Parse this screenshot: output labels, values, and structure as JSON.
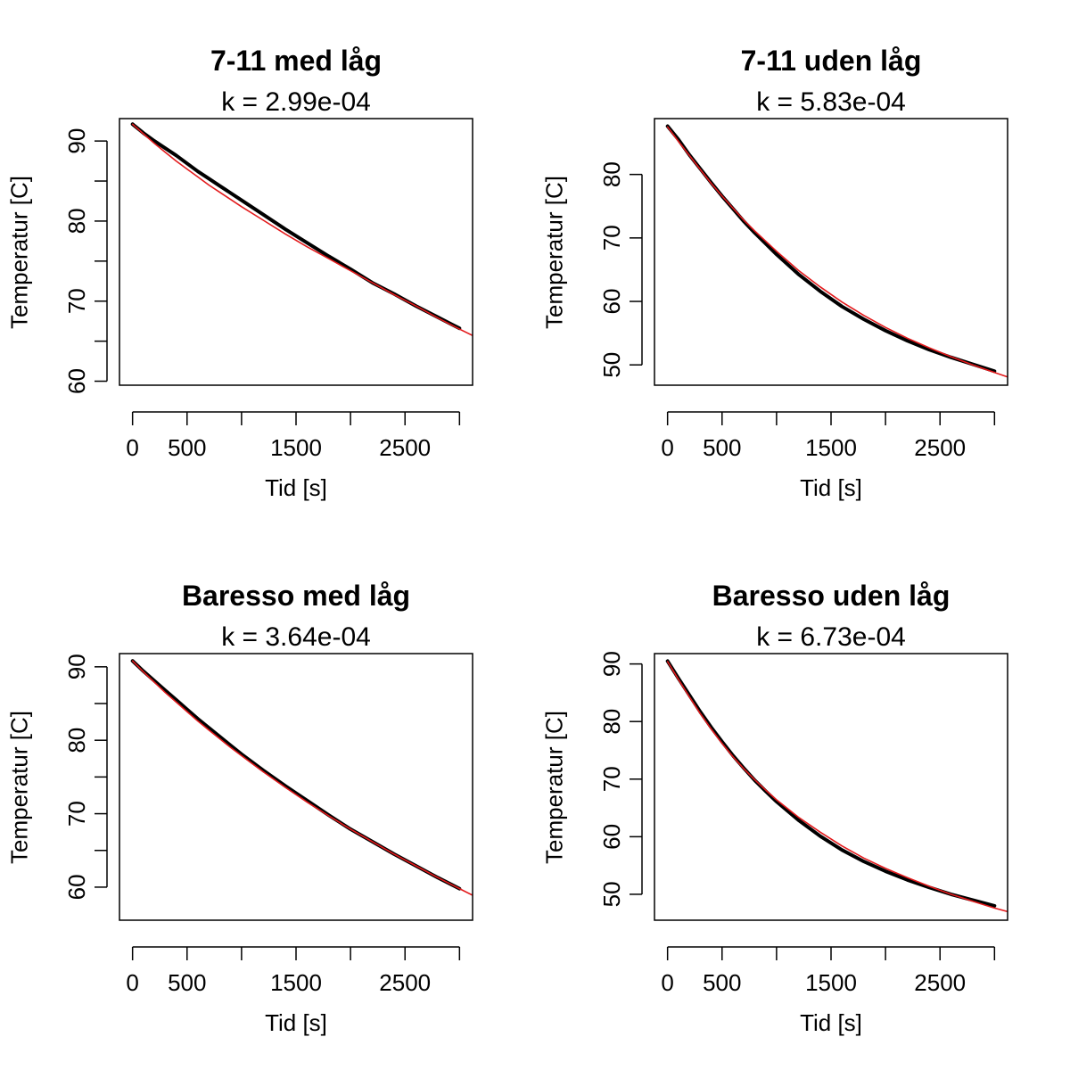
{
  "chart_data": [
    {
      "type": "line",
      "title": "7-11 med låg",
      "subtitle": "k = 2.99e-04",
      "xlabel": "Tid [s]",
      "ylabel": "Temperatur [C]",
      "xlim": [
        -120,
        3120
      ],
      "ylim": [
        59.5,
        92.8
      ],
      "x_ticks": [
        0,
        500,
        1000,
        1500,
        2000,
        2500,
        3000
      ],
      "x_tick_labels": [
        "0",
        "500",
        "",
        "1500",
        "",
        "2500",
        ""
      ],
      "y_ticks": [
        60,
        65,
        70,
        75,
        80,
        85,
        90
      ],
      "y_tick_labels": [
        "60",
        "",
        "70",
        "",
        "80",
        "",
        "90"
      ],
      "series": [
        {
          "color": "#000000",
          "width": 4,
          "x": [
            0,
            100,
            200,
            300,
            400,
            500,
            600,
            700,
            800,
            900,
            1000,
            1200,
            1400,
            1600,
            1800,
            2000,
            2200,
            2400,
            2600,
            2800,
            3000
          ],
          "y": [
            92.1,
            91.0,
            90.0,
            89.1,
            88.2,
            87.2,
            86.2,
            85.3,
            84.4,
            83.5,
            82.6,
            80.8,
            79.0,
            77.3,
            75.6,
            74.0,
            72.3,
            70.9,
            69.4,
            68.0,
            66.6
          ]
        },
        {
          "color": "#e31a1c",
          "width": 1.6,
          "x": [
            0,
            100,
            200,
            300,
            400,
            500,
            600,
            700,
            800,
            900,
            1000,
            1200,
            1400,
            1600,
            1800,
            2000,
            2200,
            2400,
            2600,
            2800,
            3000,
            3120
          ],
          "y": [
            92.1,
            90.9,
            89.7,
            88.6,
            87.5,
            86.5,
            85.5,
            84.5,
            83.6,
            82.7,
            81.8,
            80.1,
            78.4,
            76.8,
            75.3,
            73.8,
            72.3,
            70.8,
            69.4,
            67.9,
            66.5,
            65.7
          ]
        }
      ]
    },
    {
      "type": "line",
      "title": "7-11 uden låg",
      "subtitle": "k = 5.83e-04",
      "xlabel": "Tid [s]",
      "ylabel": "Temperatur [C]",
      "xlim": [
        -120,
        3120
      ],
      "ylim": [
        46.8,
        88.8
      ],
      "x_ticks": [
        0,
        500,
        1000,
        1500,
        2000,
        2500,
        3000
      ],
      "x_tick_labels": [
        "0",
        "500",
        "",
        "1500",
        "",
        "2500",
        ""
      ],
      "y_ticks": [
        50,
        60,
        70,
        80
      ],
      "y_tick_labels": [
        "50",
        "60",
        "70",
        "80"
      ],
      "series": [
        {
          "color": "#000000",
          "width": 4,
          "x": [
            0,
            100,
            200,
            300,
            400,
            500,
            600,
            700,
            800,
            900,
            1000,
            1200,
            1400,
            1600,
            1800,
            2000,
            2200,
            2400,
            2600,
            2800,
            3000
          ],
          "y": [
            87.6,
            85.5,
            83.1,
            80.9,
            78.7,
            76.6,
            74.6,
            72.6,
            70.8,
            69.1,
            67.4,
            64.3,
            61.6,
            59.2,
            57.2,
            55.4,
            53.8,
            52.4,
            51.2,
            50.1,
            49.0
          ]
        },
        {
          "color": "#e31a1c",
          "width": 1.6,
          "x": [
            0,
            100,
            200,
            300,
            400,
            500,
            600,
            700,
            800,
            900,
            1000,
            1200,
            1400,
            1600,
            1800,
            2000,
            2200,
            2400,
            2600,
            2800,
            3000,
            3120
          ],
          "y": [
            87.5,
            85.2,
            83.0,
            80.8,
            78.6,
            76.6,
            74.7,
            72.8,
            71.1,
            69.5,
            67.9,
            64.9,
            62.3,
            59.9,
            57.8,
            55.9,
            54.2,
            52.7,
            51.3,
            50.0,
            48.8,
            48.1
          ]
        }
      ]
    },
    {
      "type": "line",
      "title": "Baresso med låg",
      "subtitle": "k = 3.64e-04",
      "xlabel": "Tid [s]",
      "ylabel": "Temperatur [C]",
      "xlim": [
        -120,
        3120
      ],
      "ylim": [
        55.5,
        91.8
      ],
      "x_ticks": [
        0,
        500,
        1000,
        1500,
        2000,
        2500,
        3000
      ],
      "x_tick_labels": [
        "0",
        "500",
        "",
        "1500",
        "",
        "2500",
        ""
      ],
      "y_ticks": [
        60,
        65,
        70,
        75,
        80,
        85,
        90
      ],
      "y_tick_labels": [
        "60",
        "",
        "70",
        "",
        "80",
        "",
        "90"
      ],
      "series": [
        {
          "color": "#000000",
          "width": 4,
          "x": [
            0,
            100,
            200,
            300,
            400,
            500,
            600,
            700,
            800,
            900,
            1000,
            1200,
            1400,
            1600,
            1800,
            2000,
            2200,
            2400,
            2600,
            2800,
            3000
          ],
          "y": [
            90.8,
            89.4,
            88.1,
            86.8,
            85.5,
            84.2,
            82.9,
            81.7,
            80.5,
            79.3,
            78.1,
            75.9,
            73.8,
            71.8,
            69.8,
            67.9,
            66.2,
            64.5,
            62.9,
            61.3,
            59.8
          ]
        },
        {
          "color": "#e31a1c",
          "width": 1.6,
          "x": [
            0,
            100,
            200,
            300,
            400,
            500,
            600,
            700,
            800,
            900,
            1000,
            1200,
            1400,
            1600,
            1800,
            2000,
            2200,
            2400,
            2600,
            2800,
            3000,
            3120
          ],
          "y": [
            90.8,
            89.3,
            87.9,
            86.5,
            85.2,
            83.9,
            82.6,
            81.4,
            80.2,
            79.0,
            77.9,
            75.7,
            73.6,
            71.6,
            69.7,
            67.9,
            66.2,
            64.5,
            62.9,
            61.3,
            59.8,
            58.9
          ]
        }
      ]
    },
    {
      "type": "line",
      "title": "Baresso uden låg",
      "subtitle": "k = 6.73e-04",
      "xlabel": "Tid [s]",
      "ylabel": "Temperatur [C]",
      "xlim": [
        -120,
        3120
      ],
      "ylim": [
        45.5,
        91.8
      ],
      "x_ticks": [
        0,
        500,
        1000,
        1500,
        2000,
        2500,
        3000
      ],
      "x_tick_labels": [
        "0",
        "500",
        "",
        "1500",
        "",
        "2500",
        ""
      ],
      "y_ticks": [
        50,
        60,
        70,
        80,
        90
      ],
      "y_tick_labels": [
        "50",
        "60",
        "70",
        "80",
        "90"
      ],
      "series": [
        {
          "color": "#000000",
          "width": 4,
          "x": [
            0,
            100,
            200,
            300,
            400,
            500,
            600,
            700,
            800,
            900,
            1000,
            1200,
            1400,
            1600,
            1800,
            2000,
            2200,
            2400,
            2600,
            2800,
            3000
          ],
          "y": [
            90.5,
            87.5,
            84.6,
            81.7,
            79.0,
            76.5,
            74.1,
            71.9,
            69.8,
            67.9,
            66.1,
            62.9,
            60.1,
            57.7,
            55.7,
            54.0,
            52.5,
            51.2,
            50.0,
            49.0,
            48.0
          ]
        },
        {
          "color": "#e31a1c",
          "width": 1.6,
          "x": [
            0,
            100,
            200,
            300,
            400,
            500,
            600,
            700,
            800,
            900,
            1000,
            1200,
            1400,
            1600,
            1800,
            2000,
            2200,
            2400,
            2600,
            2800,
            3000,
            3120
          ],
          "y": [
            90.4,
            87.3,
            84.3,
            81.4,
            78.7,
            76.2,
            73.9,
            71.8,
            69.9,
            68.1,
            66.4,
            63.4,
            60.8,
            58.4,
            56.3,
            54.5,
            52.9,
            51.4,
            50.0,
            48.8,
            47.6,
            47.0
          ]
        }
      ]
    }
  ]
}
